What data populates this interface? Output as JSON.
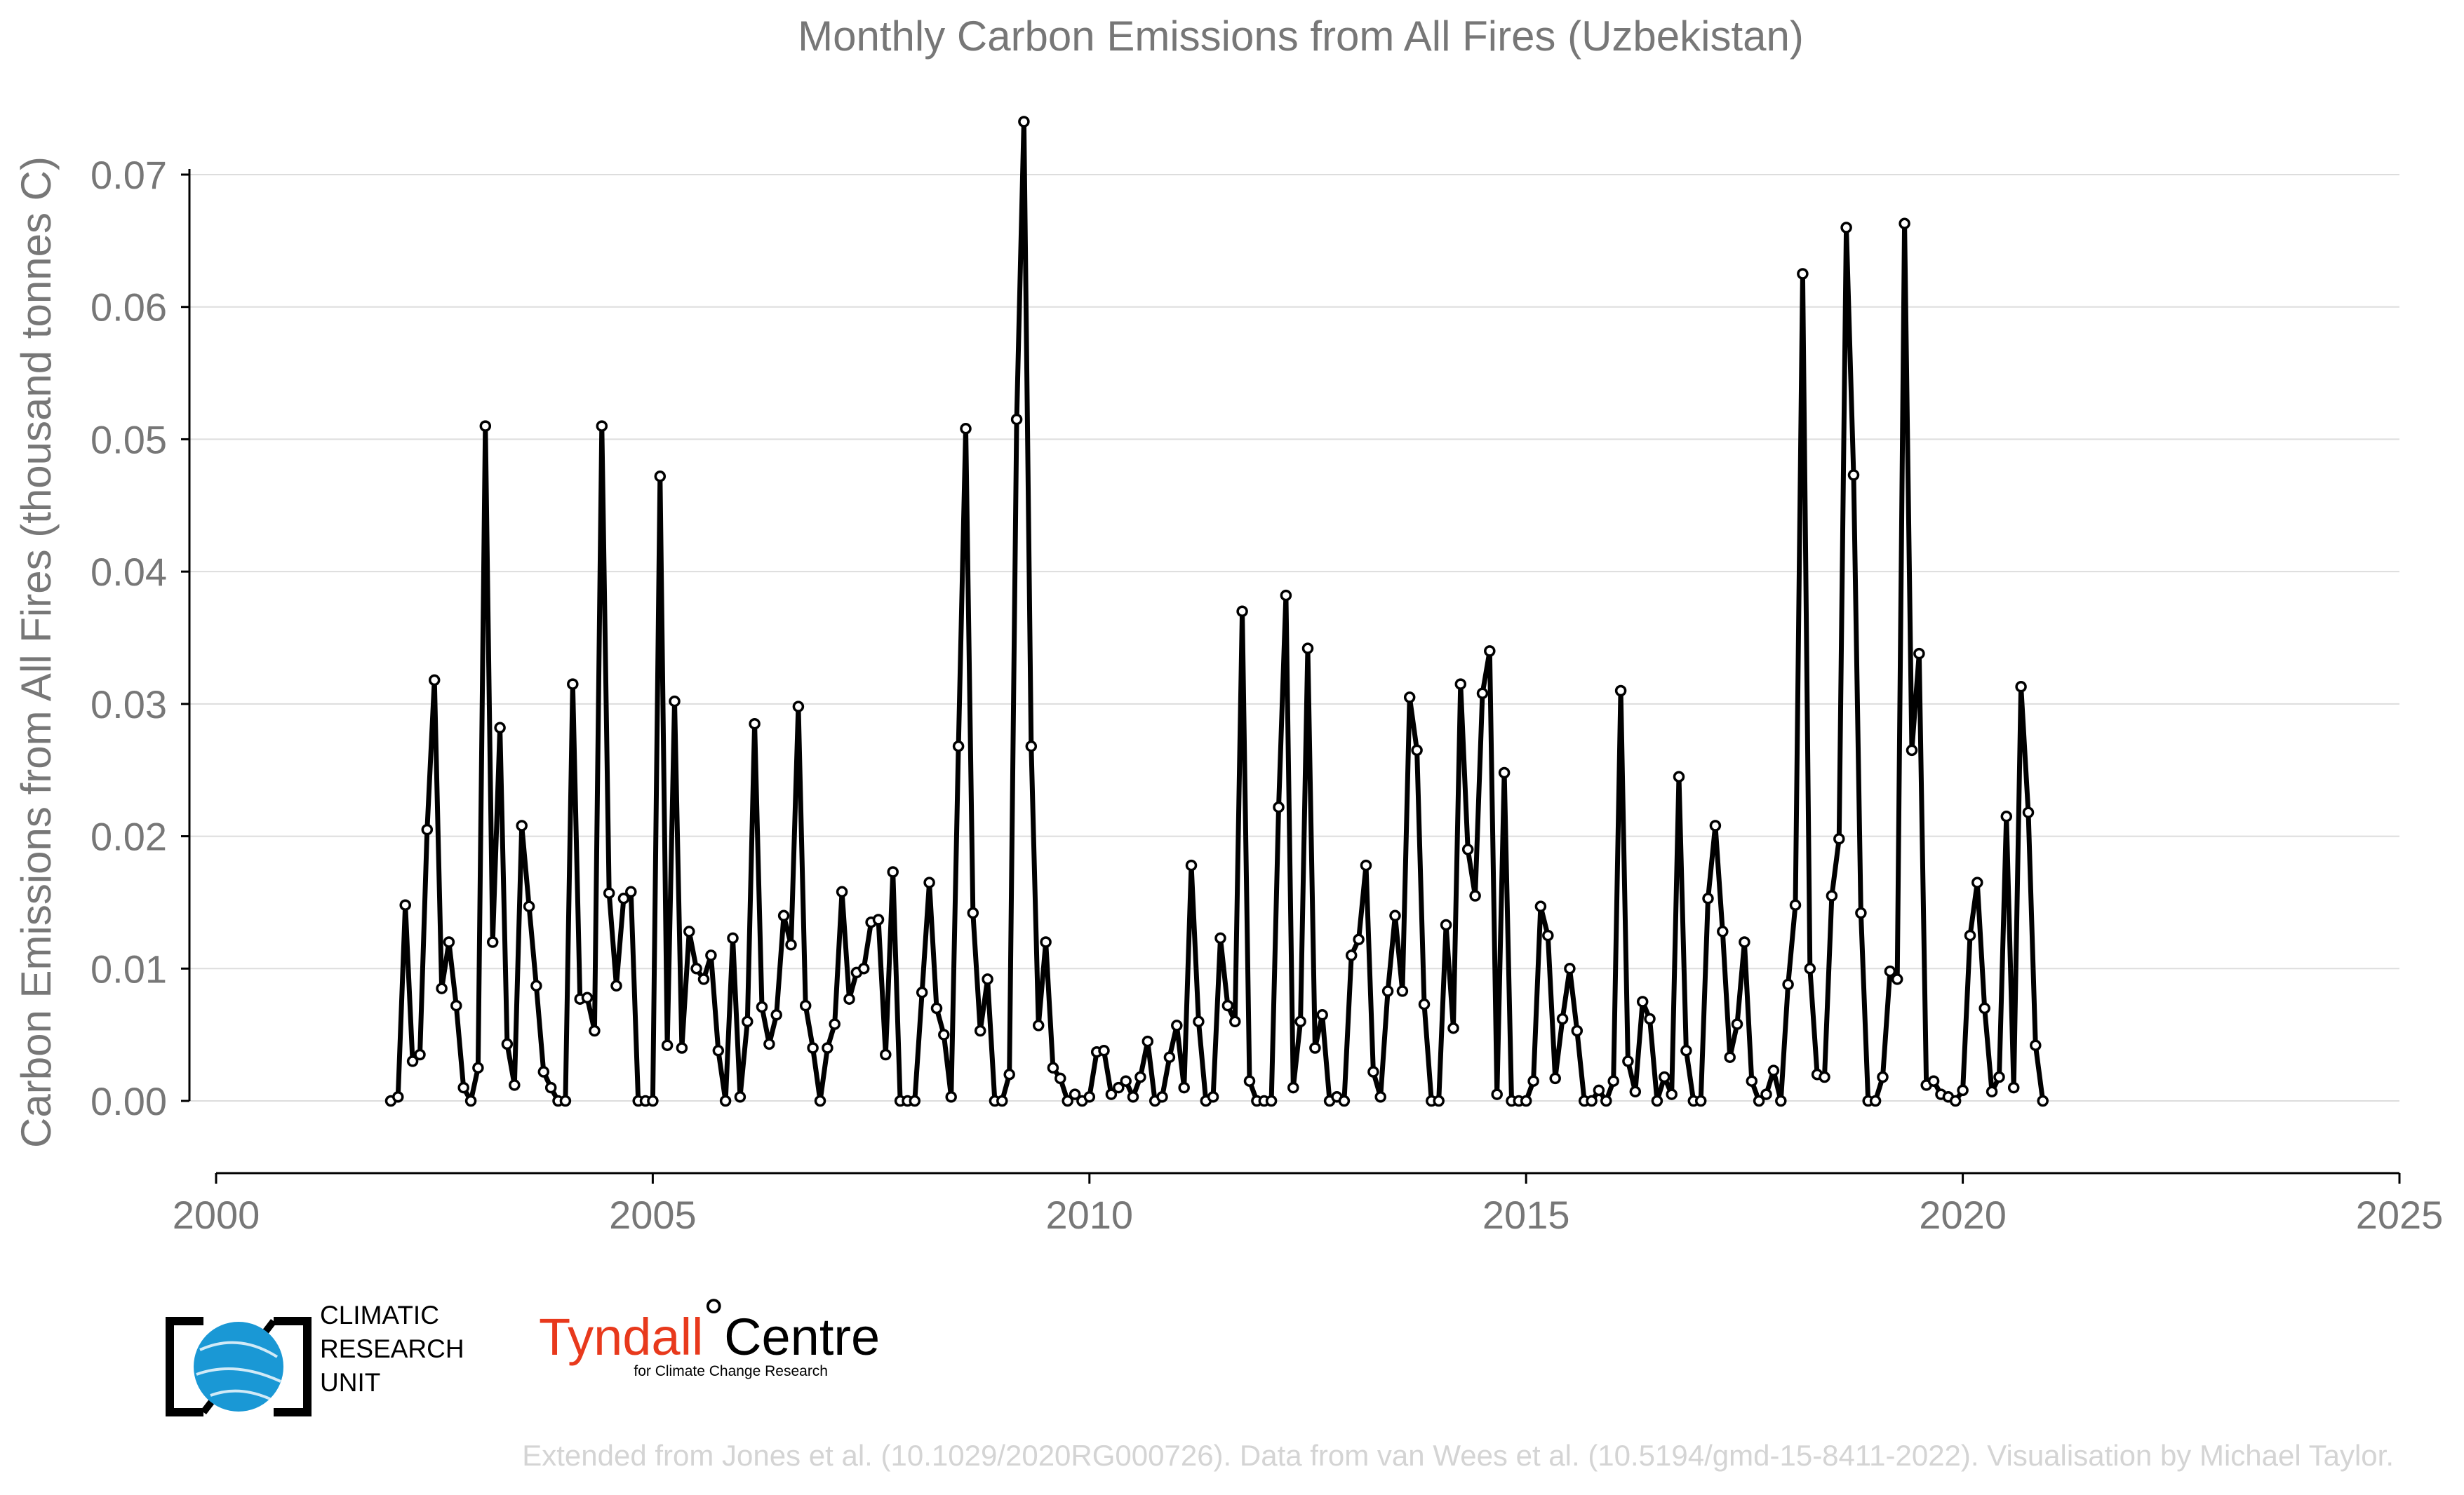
{
  "chart_data": {
    "type": "line",
    "title": "Monthly Carbon Emissions from All Fires (Uzbekistan)",
    "ylabel": "Carbon Emissions from All Fires (thousand tonnes C)",
    "xlabel": "",
    "xlim": [
      2000,
      2025
    ],
    "ylim": [
      -0.006,
      0.074
    ],
    "x_ticks": [
      2000,
      2005,
      2010,
      2015,
      2020,
      2025
    ],
    "x_tick_labels": [
      "2000",
      "2005",
      "2010",
      "2015",
      "2020",
      "2025"
    ],
    "y_ticks": [
      0.0,
      0.01,
      0.02,
      0.03,
      0.04,
      0.05,
      0.06,
      0.07
    ],
    "y_tick_labels": [
      "0.00",
      "0.01",
      "0.02",
      "0.03",
      "0.04",
      "0.05",
      "0.06",
      "0.07"
    ],
    "grid": "horizontal",
    "line_color": "#000000",
    "marker_fill": "#ffffff",
    "series": [
      {
        "start": "2002-01",
        "values": [
          0.0,
          0.0003,
          0.0148,
          0.003,
          0.0035,
          0.0205,
          0.0318,
          0.0085,
          0.012,
          0.0072,
          0.001,
          0.0,
          0.0025,
          0.051,
          0.012,
          0.0282,
          0.0043,
          0.0012,
          0.0208,
          0.0147,
          0.0087,
          0.0022,
          0.001,
          0.0,
          0.0,
          0.0315,
          0.0077,
          0.0078,
          0.0053,
          0.051,
          0.0157,
          0.0087,
          0.0153,
          0.0158,
          0.0,
          0.0,
          0.0,
          0.0472,
          0.0042,
          0.0302,
          0.004,
          0.0128,
          0.01,
          0.0092,
          0.011,
          0.0038,
          0.0,
          0.0123,
          0.0003,
          0.006,
          0.0285,
          0.0071,
          0.0043,
          0.0065,
          0.014,
          0.0118,
          0.0298,
          0.0072,
          0.004,
          0.0,
          0.004,
          0.0058,
          0.0158,
          0.0077,
          0.0097,
          0.01,
          0.0135,
          0.0137,
          0.0035,
          0.0173,
          0.0,
          0.0,
          0.0,
          0.0082,
          0.0165,
          0.007,
          0.005,
          0.0003,
          0.0268,
          0.0508,
          0.0142,
          0.0053,
          0.0092,
          0.0,
          0.0,
          0.002,
          0.0515,
          0.074,
          0.0268,
          0.0057,
          0.012,
          0.0025,
          0.0017,
          0.0,
          0.0005,
          0.0,
          0.0003,
          0.0037,
          0.0038,
          0.0005,
          0.001,
          0.0015,
          0.0003,
          0.0018,
          0.0045,
          0.0,
          0.0003,
          0.0033,
          0.0057,
          0.001,
          0.0178,
          0.006,
          0.0,
          0.0003,
          0.0123,
          0.0072,
          0.006,
          0.037,
          0.0015,
          0.0,
          0.0,
          0.0,
          0.0222,
          0.0382,
          0.001,
          0.006,
          0.0342,
          0.004,
          0.0065,
          0.0,
          0.0003,
          0.0,
          0.011,
          0.0122,
          0.0178,
          0.0022,
          0.0003,
          0.0083,
          0.014,
          0.0083,
          0.0305,
          0.0265,
          0.0073,
          0.0,
          0.0,
          0.0133,
          0.0055,
          0.0315,
          0.019,
          0.0155,
          0.0308,
          0.034,
          0.0005,
          0.0248,
          0.0,
          0.0,
          0.0,
          0.0015,
          0.0147,
          0.0125,
          0.0017,
          0.0062,
          0.01,
          0.0053,
          0.0,
          0.0,
          0.0008,
          0.0,
          0.0015,
          0.031,
          0.003,
          0.0007,
          0.0075,
          0.0062,
          0.0,
          0.0018,
          0.0005,
          0.0245,
          0.0038,
          0.0,
          0.0,
          0.0153,
          0.0208,
          0.0128,
          0.0033,
          0.0058,
          0.012,
          0.0015,
          0.0,
          0.0005,
          0.0023,
          0.0,
          0.0088,
          0.0148,
          0.0625,
          0.01,
          0.002,
          0.0018,
          0.0155,
          0.0198,
          0.066,
          0.0473,
          0.0142,
          0.0,
          0.0,
          0.0018,
          0.0098,
          0.0092,
          0.0663,
          0.0265,
          0.0338,
          0.0012,
          0.0015,
          0.0005,
          0.0003,
          0.0,
          0.0008,
          0.0125,
          0.0165,
          0.007,
          0.0007,
          0.0018,
          0.0215,
          0.001,
          0.0313,
          0.0218,
          0.0042,
          0.0
        ]
      }
    ]
  },
  "logos": {
    "cru_line1": "CLIMATIC",
    "cru_line2": "RESEARCH",
    "cru_line3": "UNIT",
    "cru_globe_color": "#1a98d5",
    "tyndall_red": "Tyndall",
    "tyndall_degree": "°",
    "tyndall_black": "Centre",
    "tyndall_sub": "for Climate Change Research",
    "tyndall_color": "#e8391c"
  },
  "footer": {
    "credit": "Extended from Jones et al. (10.1029/2020RG000726). Data from van Wees et al. (10.5194/gmd-15-8411-2022). Visualisation by Michael Taylor."
  }
}
